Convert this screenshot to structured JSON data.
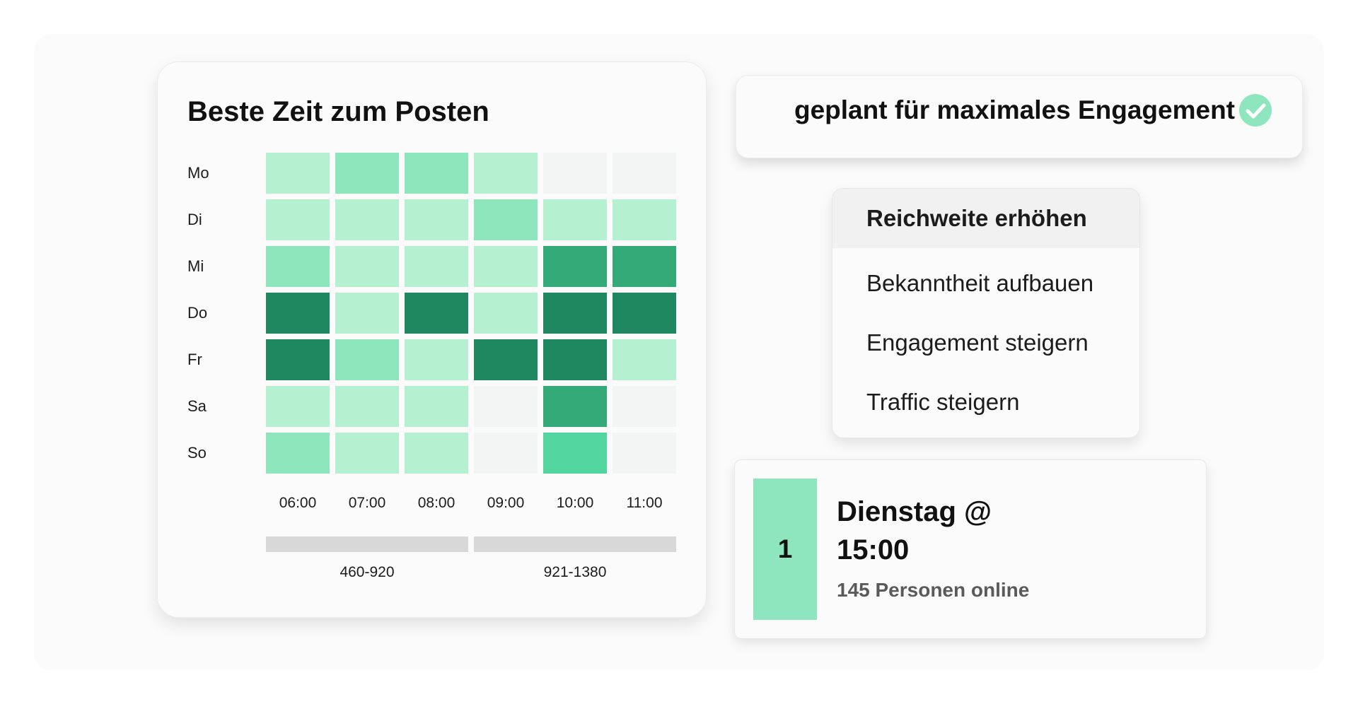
{
  "heatmap": {
    "title": "Beste Zeit zum Posten",
    "days": [
      "Mo",
      "Di",
      "Mi",
      "Do",
      "Fr",
      "Sa",
      "So"
    ],
    "times": [
      "06:00",
      "07:00",
      "08:00",
      "09:00",
      "10:00",
      "11:00"
    ],
    "levels": [
      [
        1,
        2,
        2,
        1,
        0,
        0
      ],
      [
        1,
        1,
        1,
        2,
        1,
        1
      ],
      [
        2,
        1,
        1,
        1,
        4,
        4
      ],
      [
        5,
        1,
        5,
        1,
        5,
        5
      ],
      [
        5,
        2,
        1,
        5,
        5,
        1
      ],
      [
        1,
        1,
        1,
        0,
        4,
        0
      ],
      [
        2,
        1,
        1,
        0,
        3,
        0
      ]
    ],
    "palette": [
      "#f3f5f4",
      "#b5f1d1",
      "#8ee6bd",
      "#52d59e",
      "#34aa78",
      "#208860"
    ],
    "ranges": [
      "460-920",
      "921-1380"
    ]
  },
  "schedule": {
    "text": "geplant für maximales Engagement",
    "icon": "check-icon"
  },
  "goals": {
    "items": [
      "Reichweite erhöhen",
      "Bekanntheit aufbauen",
      "Engagement steigern",
      "Traffic steigern"
    ],
    "selected_index": 0
  },
  "best_time": {
    "rank": "1",
    "title": "Dienstag @ 15:00",
    "subtitle": "145 Personen online"
  },
  "colors": {
    "accent": "#8de6be",
    "range_bar": "#d8d8d8"
  }
}
